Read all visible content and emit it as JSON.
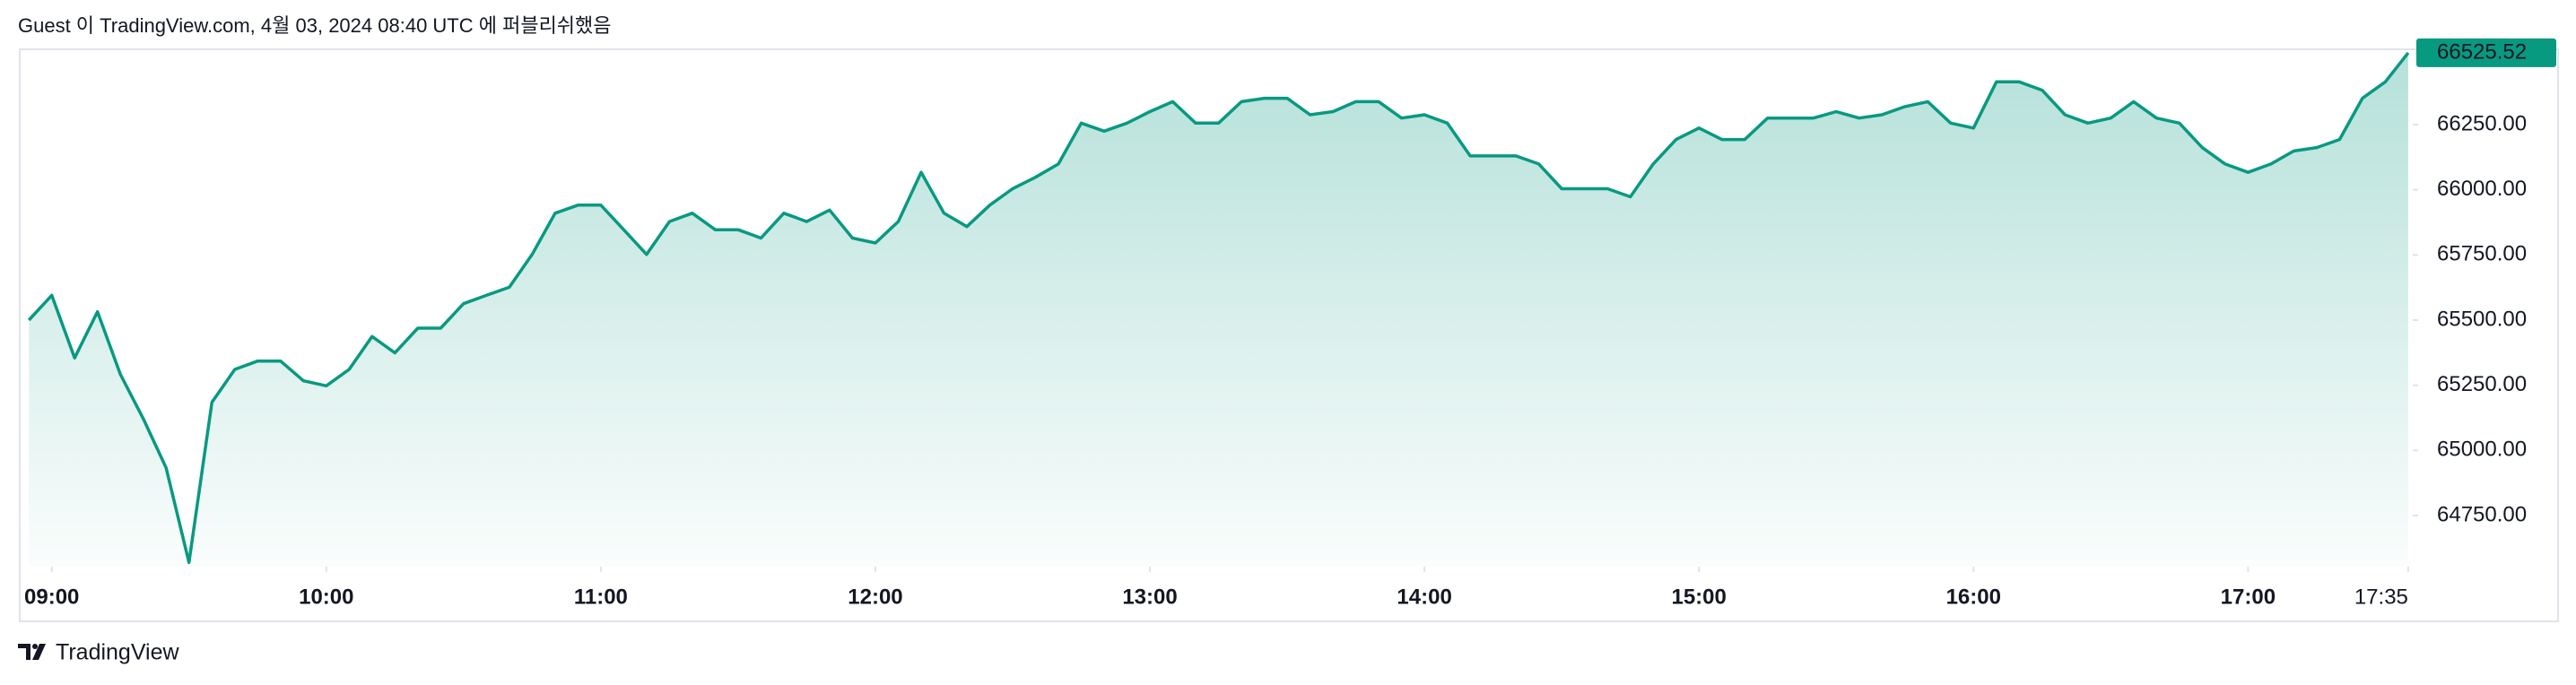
{
  "chart_data": {
    "type": "area",
    "title": "Guest 이 TradingView.com, 4월 03, 2024 08:40 UTC 에 퍼블리쉬했음",
    "source": "TradingView",
    "color": "#089981",
    "x": [
      "08:55",
      "09:00",
      "09:05",
      "09:10",
      "09:15",
      "09:20",
      "09:25",
      "09:30",
      "09:35",
      "09:40",
      "09:45",
      "09:50",
      "09:55",
      "10:00",
      "10:05",
      "10:10",
      "10:15",
      "10:20",
      "10:25",
      "10:30",
      "10:35",
      "10:40",
      "10:45",
      "10:50",
      "10:55",
      "11:00",
      "11:05",
      "11:10",
      "11:15",
      "11:20",
      "11:25",
      "11:30",
      "11:35",
      "11:40",
      "11:45",
      "11:50",
      "11:55",
      "12:00",
      "12:05",
      "12:10",
      "12:15",
      "12:20",
      "12:25",
      "12:30",
      "12:35",
      "12:40",
      "12:45",
      "12:50",
      "12:55",
      "13:00",
      "13:05",
      "13:10",
      "13:15",
      "13:20",
      "13:25",
      "13:30",
      "13:35",
      "13:40",
      "13:45",
      "13:50",
      "13:55",
      "14:00",
      "14:05",
      "14:10",
      "14:15",
      "14:20",
      "14:25",
      "14:30",
      "14:35",
      "14:40",
      "14:45",
      "14:50",
      "14:55",
      "15:00",
      "15:05",
      "15:10",
      "15:15",
      "15:20",
      "15:25",
      "15:30",
      "15:35",
      "15:40",
      "15:45",
      "15:50",
      "15:55",
      "16:00",
      "16:05",
      "16:10",
      "16:15",
      "16:20",
      "16:25",
      "16:30",
      "16:35",
      "16:40",
      "16:45",
      "16:50",
      "16:55",
      "17:00",
      "17:05",
      "17:10",
      "17:15",
      "17:20",
      "17:25",
      "17:30",
      "17:35"
    ],
    "values": [
      65500,
      65595,
      65355,
      65532,
      65292,
      65122,
      64933,
      64570,
      65185,
      65311,
      65343,
      65343,
      65267,
      65248,
      65311,
      65437,
      65374,
      65469,
      65469,
      65563,
      65595,
      65626,
      65752,
      65910,
      65941,
      65941,
      65847,
      65752,
      65878,
      65910,
      65847,
      65847,
      65815,
      65910,
      65878,
      65922,
      65815,
      65796,
      65878,
      66067,
      65910,
      65859,
      65941,
      66004,
      66048,
      66099,
      66256,
      66225,
      66256,
      66300,
      66338,
      66256,
      66256,
      66338,
      66351,
      66351,
      66288,
      66300,
      66338,
      66338,
      66275,
      66288,
      66256,
      66130,
      66130,
      66130,
      66099,
      66004,
      66004,
      66004,
      65973,
      66099,
      66193,
      66237,
      66193,
      66193,
      66275,
      66275,
      66275,
      66300,
      66275,
      66288,
      66319,
      66338,
      66256,
      66237,
      66414,
      66414,
      66382,
      66288,
      66256,
      66275,
      66338,
      66275,
      66256,
      66162,
      66099,
      66067,
      66099,
      66149,
      66162,
      66193,
      66351,
      66414,
      66525.52
    ],
    "last_price": 66525.52,
    "xlim": [
      "08:53",
      "17:36"
    ],
    "xticks": [
      "09:00",
      "10:00",
      "11:00",
      "12:00",
      "13:00",
      "14:00",
      "15:00",
      "16:00",
      "17:00",
      "17:35"
    ],
    "ylim": [
      64554,
      66539
    ],
    "yticks": [
      {
        "value": 64750,
        "label": "64750.00"
      },
      {
        "value": 65000,
        "label": "65000.00"
      },
      {
        "value": 65250,
        "label": "65250.00"
      },
      {
        "value": 65500,
        "label": "65500.00"
      },
      {
        "value": 65750,
        "label": "65750.00"
      },
      {
        "value": 66000,
        "label": "66000.00"
      },
      {
        "value": 66250,
        "label": "66250.00"
      }
    ]
  }
}
